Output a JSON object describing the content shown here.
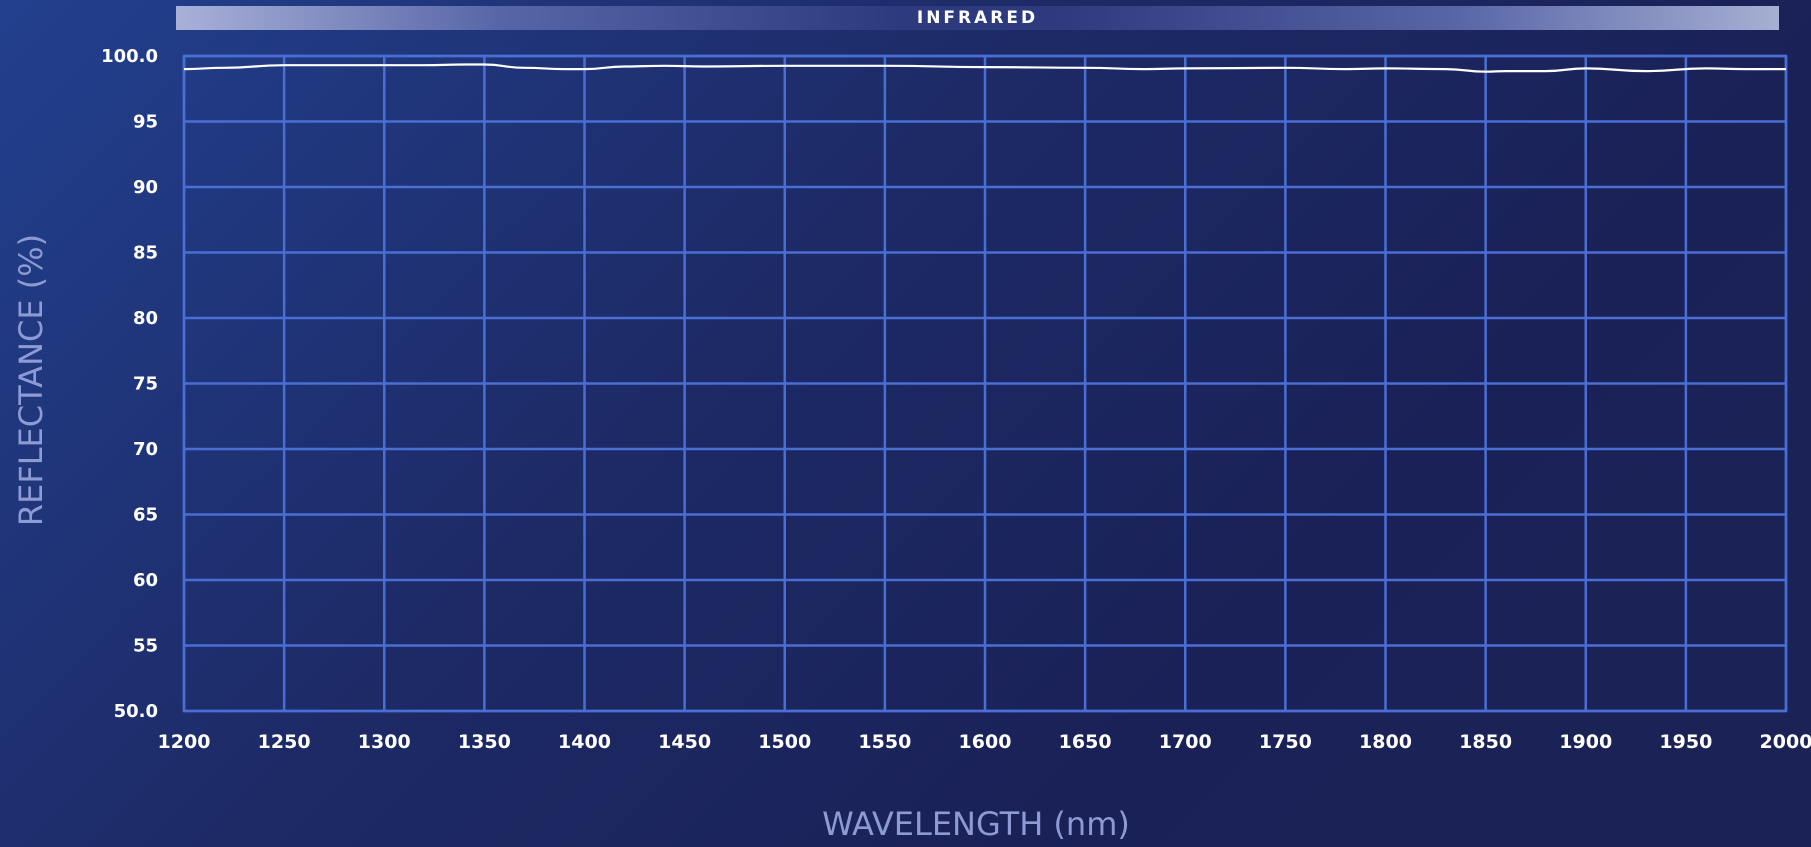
{
  "band": {
    "label": "INFRARED"
  },
  "chart_data": {
    "type": "line",
    "title": "",
    "xlabel": "WAVELENGTH (nm)",
    "ylabel": "REFLECTANCE (%)",
    "xlim": [
      1200,
      2000
    ],
    "ylim": [
      50,
      100
    ],
    "x_ticks": [
      "1200",
      "1250",
      "1300",
      "1350",
      "1400",
      "1450",
      "1500",
      "1550",
      "1600",
      "1650",
      "1700",
      "1750",
      "1800",
      "1850",
      "1900",
      "1950",
      "2000"
    ],
    "y_ticks": [
      "100.0",
      "95",
      "90",
      "85",
      "80",
      "75",
      "70",
      "65",
      "60",
      "55",
      "50.0"
    ],
    "grid": true,
    "colors": {
      "grid": "#4a6fd4",
      "line": "#ffffff",
      "axis_title": "#8d9ad4"
    },
    "series": [
      {
        "x": [
          1200,
          1220,
          1250,
          1280,
          1300,
          1320,
          1340,
          1350,
          1370,
          1390,
          1400,
          1420,
          1440,
          1460,
          1500,
          1550,
          1600,
          1650,
          1680,
          1700,
          1750,
          1780,
          1800,
          1830,
          1850,
          1860,
          1880,
          1900,
          1930,
          1960,
          1980,
          2000
        ],
        "y": [
          99.0,
          99.1,
          99.3,
          99.3,
          99.3,
          99.3,
          99.35,
          99.35,
          99.1,
          99.0,
          99.0,
          99.2,
          99.25,
          99.2,
          99.25,
          99.25,
          99.15,
          99.1,
          99.0,
          99.05,
          99.1,
          99.0,
          99.05,
          99.0,
          98.8,
          98.85,
          98.85,
          99.05,
          98.85,
          99.05,
          99.0,
          99.0
        ]
      }
    ]
  }
}
